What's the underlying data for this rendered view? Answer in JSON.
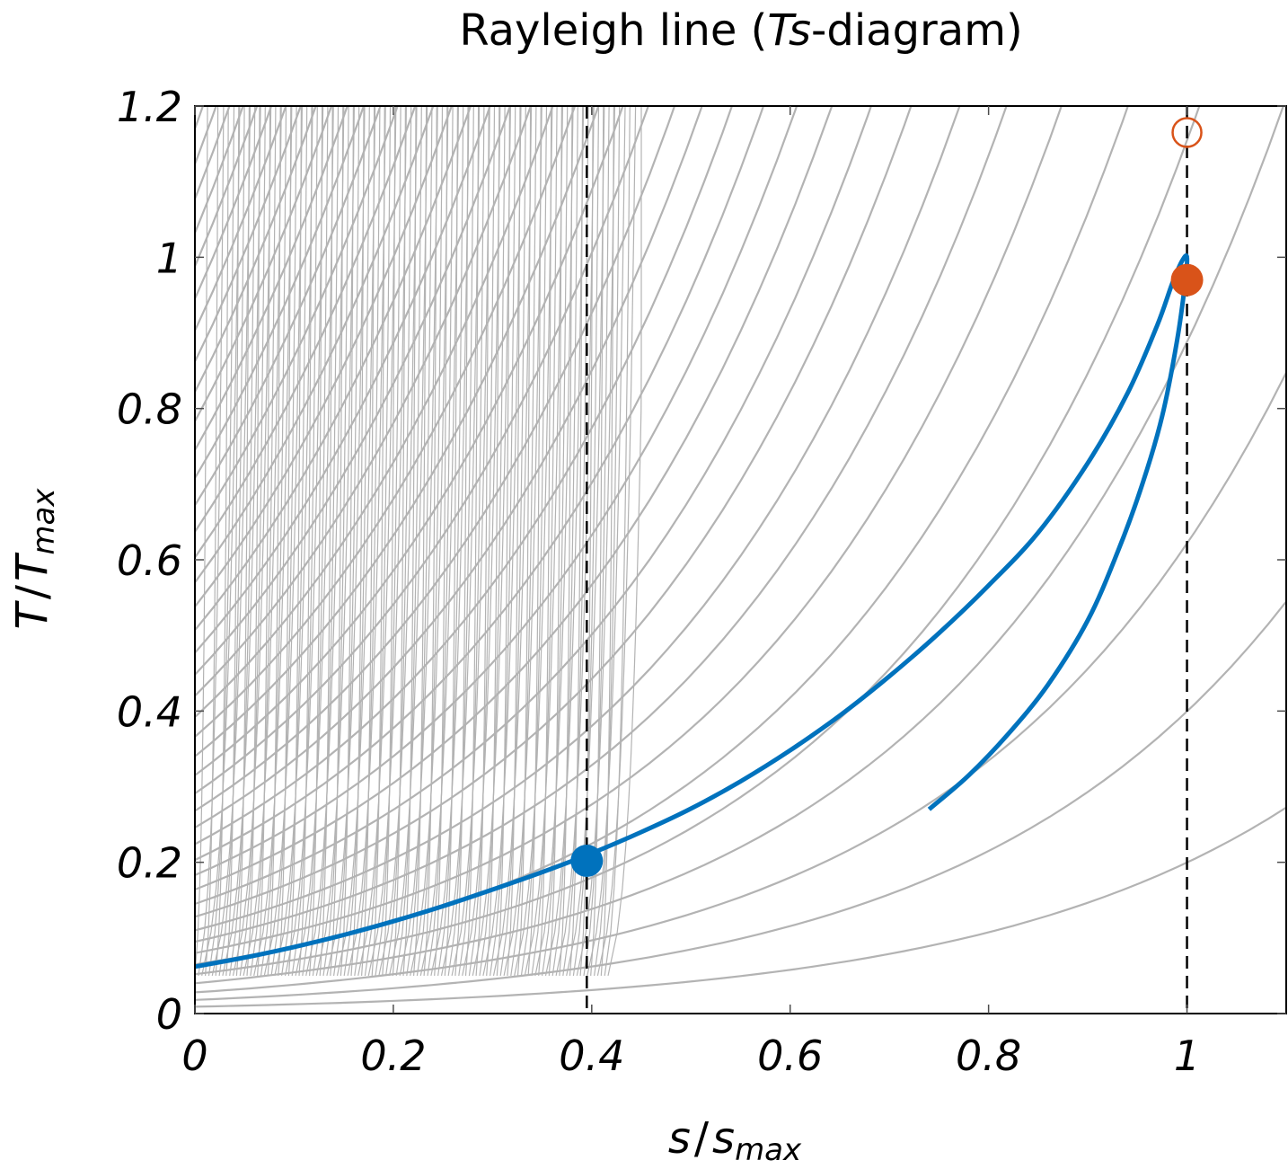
{
  "chart_data": {
    "type": "line",
    "title": {
      "prefix": "Rayleigh line (",
      "italic": "Ts",
      "suffix": "-diagram)"
    },
    "xlabel": {
      "base": "s",
      "sep": "/",
      "base2": "s",
      "sub": "max"
    },
    "ylabel": {
      "base": "T",
      "sep": "/",
      "base2": "T",
      "sub": "max"
    },
    "xlim": [
      0,
      1.1
    ],
    "ylim": [
      0,
      1.2
    ],
    "x_ticks": [
      0,
      0.2,
      0.4,
      0.6,
      0.8,
      1
    ],
    "x_tick_labels": [
      "0",
      "0.2",
      "0.4",
      "0.6",
      "0.8",
      "1"
    ],
    "y_ticks": [
      0,
      0.2,
      0.4,
      0.6,
      0.8,
      1,
      1.2
    ],
    "y_tick_labels": [
      "0",
      "0.2",
      "0.4",
      "0.6",
      "0.8",
      "1",
      "1.2"
    ],
    "grid": false,
    "background_isobars": {
      "description_values": "family of constant-pressure curves T/Tmax = a·exp(b·s/smax)",
      "T_at_s0": [
        0.009,
        0.018,
        0.028,
        0.04,
        0.052,
        0.065,
        0.08,
        0.095,
        0.11,
        0.128,
        0.145,
        0.164,
        0.183,
        0.203,
        0.224,
        0.246,
        0.268,
        0.291,
        0.315,
        0.34,
        0.366,
        0.392,
        0.42,
        0.448,
        0.477,
        0.507,
        0.538,
        0.57,
        0.603,
        0.637,
        0.672,
        0.708,
        0.745,
        0.783,
        0.822,
        0.862,
        0.903,
        0.945,
        0.988,
        1.032,
        1.077,
        1.123,
        1.17
      ],
      "growth_rate": 3.1,
      "color": "#b3b3b3"
    },
    "series": [
      {
        "x": [
          0,
          0.05,
          0.1,
          0.15,
          0.2,
          0.25,
          0.3,
          0.35,
          0.4,
          0.45,
          0.5,
          0.55,
          0.6,
          0.65,
          0.7,
          0.75,
          0.8,
          0.85,
          0.9,
          0.94,
          0.97,
          0.985,
          0.995,
          1.0,
          0.998,
          0.99,
          0.975,
          0.955,
          0.93,
          0.9,
          0.86,
          0.82,
          0.78,
          0.74
        ],
        "y": [
          0.062,
          0.074,
          0.088,
          0.104,
          0.122,
          0.142,
          0.164,
          0.187,
          0.212,
          0.24,
          0.271,
          0.307,
          0.348,
          0.394,
          0.446,
          0.503,
          0.566,
          0.636,
          0.728,
          0.82,
          0.91,
          0.965,
          0.995,
          1.0,
          0.965,
          0.89,
          0.79,
          0.7,
          0.61,
          0.52,
          0.435,
          0.37,
          0.315,
          0.27
        ],
        "color": "#0072BD"
      }
    ],
    "vertical_lines": [
      {
        "x": 0.395,
        "style": "dashed",
        "color": "#000000"
      },
      {
        "x": 1.0,
        "style": "dashed",
        "color": "#000000"
      }
    ],
    "markers": [
      {
        "x": 0.395,
        "y": 0.202,
        "style": "filled",
        "color": "#0072BD"
      },
      {
        "x": 1.0,
        "y": 0.97,
        "style": "filled",
        "color": "#D95319"
      },
      {
        "x": 1.0,
        "y": 1.165,
        "style": "open",
        "color": "#D95319"
      }
    ]
  }
}
